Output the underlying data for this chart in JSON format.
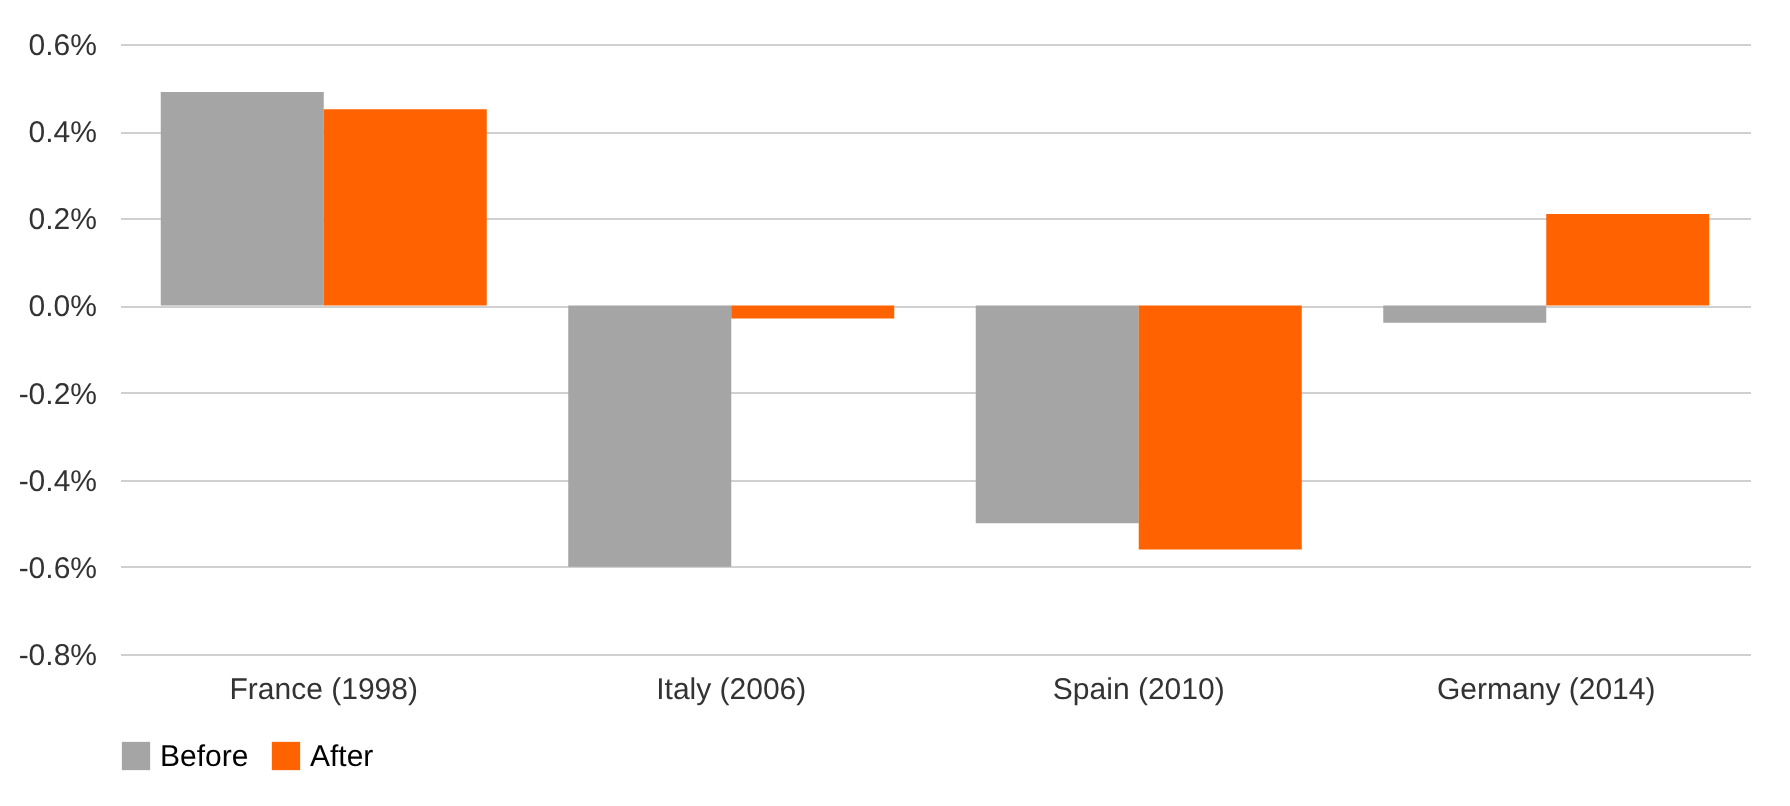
{
  "chart_data": {
    "type": "bar",
    "categories": [
      "France (1998)",
      "Italy (2006)",
      "Spain (2010)",
      "Germany (2014)"
    ],
    "series": [
      {
        "name": "Before",
        "color": "#a5a5a5",
        "values": [
          0.49,
          -0.6,
          -0.5,
          -0.04
        ]
      },
      {
        "name": "After",
        "color": "#ff6200",
        "values": [
          0.45,
          -0.03,
          -0.56,
          0.21
        ]
      }
    ],
    "ylim": [
      -0.8,
      0.6
    ],
    "yticks": [
      {
        "value": -0.8,
        "label": "-0.8%"
      },
      {
        "value": -0.6,
        "label": "-0.6%"
      },
      {
        "value": -0.4,
        "label": "-0.4%"
      },
      {
        "value": -0.2,
        "label": "-0.2%"
      },
      {
        "value": 0,
        "label": "0.0%"
      },
      {
        "value": 0.2,
        "label": "0.2%"
      },
      {
        "value": 0.4,
        "label": "0.4%"
      },
      {
        "value": 0.6,
        "label": "0.6%"
      }
    ],
    "grid": "y",
    "legend": "bottom"
  }
}
